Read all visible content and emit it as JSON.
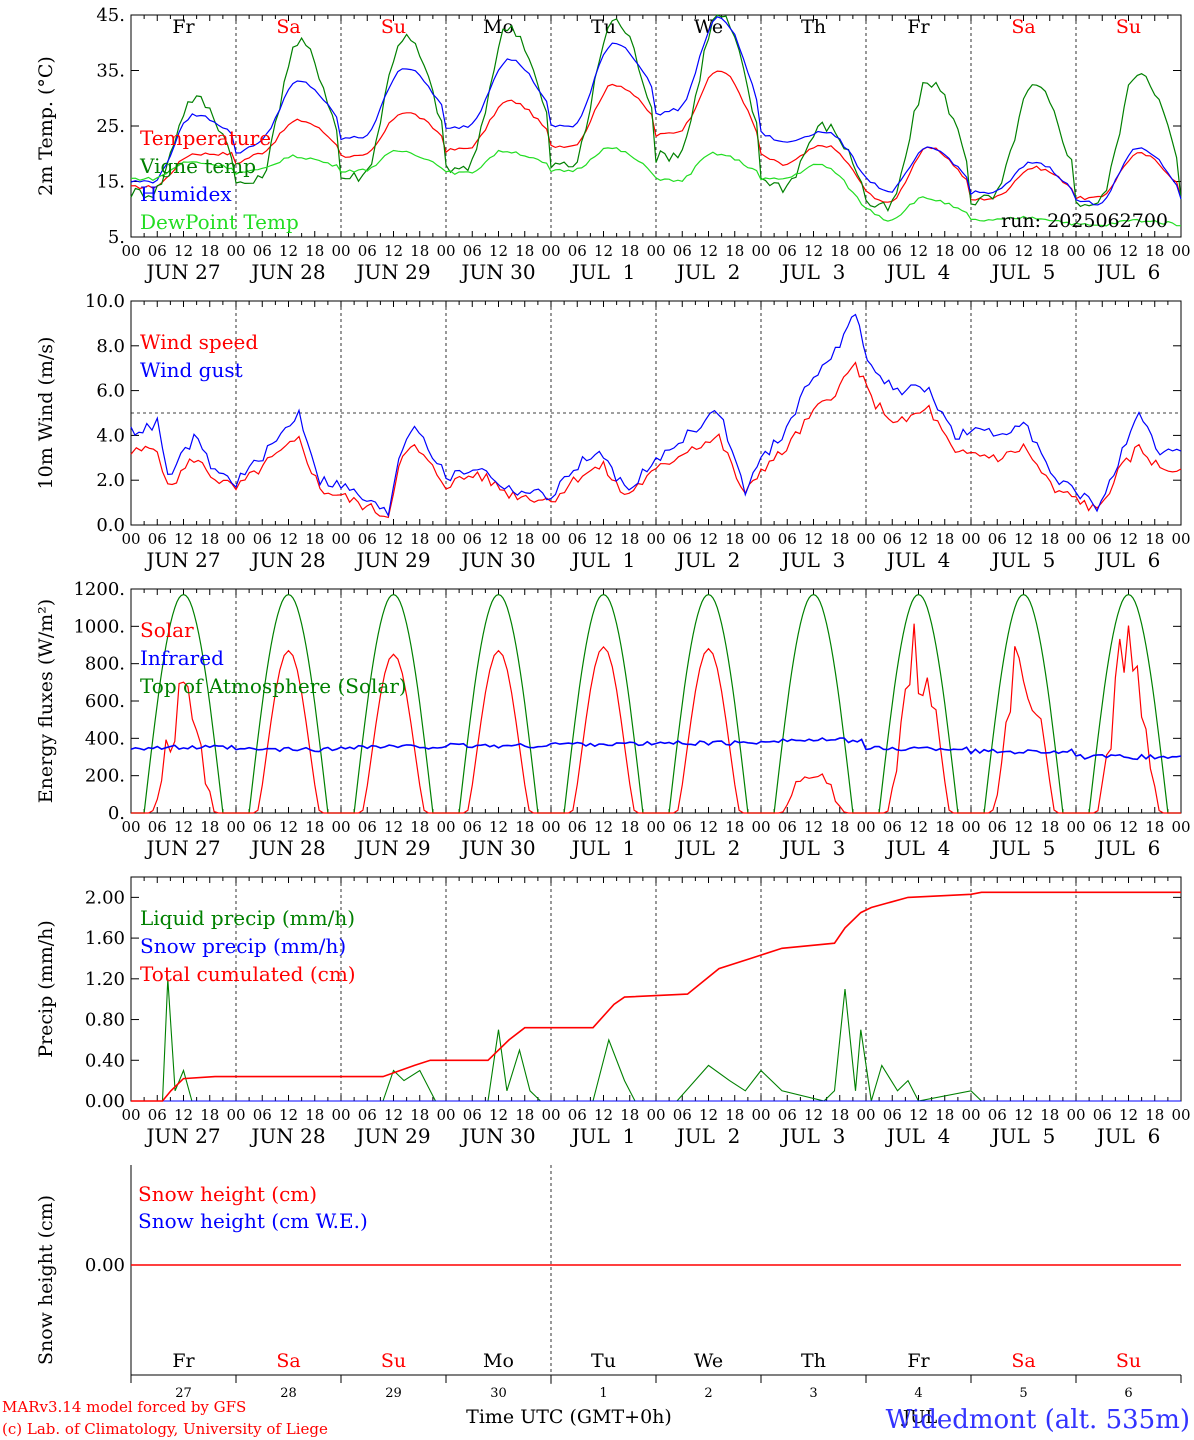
{
  "colors": {
    "red": "#ff0000",
    "green": "#008000",
    "blue": "#0000ff",
    "lime": "#22dd22",
    "black": "#000000",
    "footer_blue": "#3333ff"
  },
  "days": [
    {
      "weekday": "Fr",
      "weekend": false,
      "date": "JUN 27",
      "num": "27"
    },
    {
      "weekday": "Sa",
      "weekend": true,
      "date": "JUN 28",
      "num": "28"
    },
    {
      "weekday": "Su",
      "weekend": true,
      "date": "JUN 29",
      "num": "29"
    },
    {
      "weekday": "Mo",
      "weekend": false,
      "date": "JUN 30",
      "num": "30"
    },
    {
      "weekday": "Tu",
      "weekend": false,
      "date": "JUL  1",
      "num": "1"
    },
    {
      "weekday": "We",
      "weekend": false,
      "date": "JUL  2",
      "num": "2"
    },
    {
      "weekday": "Th",
      "weekend": false,
      "date": "JUL  3",
      "num": "3"
    },
    {
      "weekday": "Fr",
      "weekend": false,
      "date": "JUL  4",
      "num": "4"
    },
    {
      "weekday": "Sa",
      "weekend": true,
      "date": "JUL  5",
      "num": "5"
    },
    {
      "weekday": "Su",
      "weekend": true,
      "date": "JUL  6",
      "num": "6"
    }
  ],
  "hour_labels": [
    "00",
    "06",
    "12",
    "18"
  ],
  "footer": {
    "model_line1": "MARv3.14 model forced by GFS",
    "model_line2": "(c) Lab. of Climatology, University of Liege",
    "time_axis": "Time UTC (GMT+0h)",
    "location": "Widedmont (alt. 535m)",
    "month": "JUL"
  },
  "chart_data": [
    {
      "type": "line",
      "id": "temp",
      "ylabel": "2m Temp. (°C)",
      "ylim": [
        5,
        45
      ],
      "yticks": [
        "5.",
        "15.",
        "25.",
        "35.",
        "45."
      ],
      "ytick_values": [
        5,
        15,
        25,
        35,
        45
      ],
      "run": "run: 2025062700",
      "series": [
        {
          "name": "Temperature",
          "color": "#ff0000",
          "min": [
            14,
            20,
            19.5,
            21,
            21.5,
            24,
            18,
            11,
            12,
            12
          ],
          "max": [
            20,
            26,
            27.5,
            29.5,
            32.5,
            35,
            21.5,
            21,
            17.5,
            20
          ],
          "min_x": 0.2,
          "max_x": 0.6
        },
        {
          "name": "Vigne temp",
          "color": "#008000",
          "min": [
            13,
            15,
            16,
            17.5,
            18,
            20,
            14,
            10,
            12,
            11
          ],
          "max": [
            30,
            40,
            41,
            43,
            44,
            45,
            25,
            33,
            32,
            35
          ],
          "min_x": 0.2,
          "max_x": 0.6
        },
        {
          "name": "Humidex",
          "color": "#0000ff",
          "min": [
            15,
            22,
            23,
            25,
            25,
            28,
            22,
            13,
            13,
            11
          ],
          "max": [
            27,
            33,
            35.5,
            37,
            40,
            44.5,
            24,
            21,
            18.5,
            21
          ],
          "min_x": 0.2,
          "max_x": 0.6
        },
        {
          "name": "DewPoint Temp",
          "color": "#22dd22",
          "min": [
            15.5,
            17,
            17,
            16.5,
            17,
            15,
            15.5,
            8,
            8,
            7
          ],
          "max": [
            18.5,
            19.5,
            20.5,
            20.5,
            21,
            20,
            18,
            12,
            8.5,
            8
          ],
          "min_x": 0.2,
          "max_x": 0.55
        }
      ]
    },
    {
      "type": "line",
      "id": "wind",
      "ylabel": "10m Wind (m/s)",
      "ylim": [
        0,
        10
      ],
      "yticks": [
        "0.0",
        "2.0",
        "4.0",
        "6.0",
        "8.0",
        "10.0"
      ],
      "ytick_values": [
        0,
        2,
        4,
        6,
        8,
        10
      ],
      "ref_line": 5,
      "series": [
        {
          "name": "Wind speed",
          "color": "#ff0000",
          "points": [
            [
              0,
              3.2
            ],
            [
              0.1,
              3.3
            ],
            [
              0.25,
              3.5
            ],
            [
              0.35,
              1.6
            ],
            [
              0.6,
              3
            ],
            [
              0.8,
              2.1
            ],
            [
              1,
              1.6
            ],
            [
              1.3,
              2.8
            ],
            [
              1.6,
              3.8
            ],
            [
              1.8,
              1.6
            ],
            [
              2,
              1.3
            ],
            [
              2.45,
              0.4
            ],
            [
              2.55,
              2.8
            ],
            [
              2.7,
              3.5
            ],
            [
              3,
              1.8
            ],
            [
              3.3,
              2.3
            ],
            [
              3.6,
              1.4
            ],
            [
              4,
              1.1
            ],
            [
              4.3,
              2.3
            ],
            [
              4.5,
              2.6
            ],
            [
              4.7,
              1.3
            ],
            [
              5,
              2.4
            ],
            [
              5.3,
              3.4
            ],
            [
              5.6,
              3.9
            ],
            [
              5.85,
              1.3
            ],
            [
              6,
              2.5
            ],
            [
              6.2,
              3.2
            ],
            [
              6.5,
              5
            ],
            [
              6.75,
              6.2
            ],
            [
              6.9,
              7.2
            ],
            [
              7.05,
              5.6
            ],
            [
              7.3,
              4.5
            ],
            [
              7.6,
              5.2
            ],
            [
              7.85,
              3.1
            ],
            [
              8,
              3.2
            ],
            [
              8.3,
              3
            ],
            [
              8.5,
              3.5
            ],
            [
              8.8,
              1.5
            ],
            [
              9,
              1.2
            ],
            [
              9.2,
              0.6
            ],
            [
              9.4,
              2.3
            ],
            [
              9.6,
              3.5
            ],
            [
              9.8,
              2.5
            ],
            [
              10,
              2.5
            ]
          ]
        },
        {
          "name": "Wind gust",
          "color": "#0000ff",
          "points": [
            [
              0,
              4.2
            ],
            [
              0.15,
              4.3
            ],
            [
              0.25,
              4.6
            ],
            [
              0.35,
              2.1
            ],
            [
              0.6,
              3.9
            ],
            [
              0.8,
              2.4
            ],
            [
              1,
              1.9
            ],
            [
              1.3,
              3.3
            ],
            [
              1.6,
              5
            ],
            [
              1.8,
              2
            ],
            [
              2,
              1.8
            ],
            [
              2.45,
              0.5
            ],
            [
              2.55,
              3.1
            ],
            [
              2.7,
              4.6
            ],
            [
              3,
              2.1
            ],
            [
              3.3,
              2.6
            ],
            [
              3.6,
              1.6
            ],
            [
              4,
              1.3
            ],
            [
              4.3,
              2.9
            ],
            [
              4.5,
              3.1
            ],
            [
              4.7,
              1.6
            ],
            [
              5,
              2.8
            ],
            [
              5.3,
              4.1
            ],
            [
              5.6,
              5.1
            ],
            [
              5.85,
              1.5
            ],
            [
              6,
              2.9
            ],
            [
              6.2,
              4
            ],
            [
              6.5,
              6.7
            ],
            [
              6.75,
              8
            ],
            [
              6.9,
              9.5
            ],
            [
              7.05,
              6.9
            ],
            [
              7.3,
              6
            ],
            [
              7.6,
              6.1
            ],
            [
              7.85,
              3.9
            ],
            [
              8,
              4.2
            ],
            [
              8.3,
              4
            ],
            [
              8.5,
              4.8
            ],
            [
              8.8,
              1.9
            ],
            [
              9,
              1.6
            ],
            [
              9.2,
              0.7
            ],
            [
              9.4,
              2.8
            ],
            [
              9.6,
              4.8
            ],
            [
              9.8,
              3.2
            ],
            [
              10,
              3.3
            ]
          ]
        }
      ]
    },
    {
      "type": "line",
      "id": "energy",
      "ylabel": "Energy fluxes (W/m²)",
      "ylim": [
        0,
        1200
      ],
      "yticks": [
        "0.",
        "200.",
        "400.",
        "600.",
        "800.",
        "1000.",
        "1200."
      ],
      "ytick_values": [
        0,
        200,
        400,
        600,
        800,
        1000,
        1200
      ],
      "series": [
        {
          "name": "Solar",
          "color": "#ff0000",
          "peaks": [
            640,
            870,
            850,
            870,
            890,
            880,
            280,
            900,
            900,
            910
          ]
        },
        {
          "name": "Infrared",
          "color": "#0000ff",
          "base": [
            350,
            340,
            355,
            360,
            370,
            375,
            390,
            345,
            330,
            300
          ]
        },
        {
          "name": "Top of Atmosphere (Solar)",
          "color": "#008000",
          "peak": 1170
        }
      ]
    },
    {
      "type": "line",
      "id": "precip",
      "ylabel": "Precip (mm/h)",
      "ylim": [
        0,
        2.2
      ],
      "yticks": [
        "0.00",
        "0.40",
        "0.80",
        "1.20",
        "1.60",
        "2.00"
      ],
      "ytick_values": [
        0,
        0.4,
        0.8,
        1.2,
        1.6,
        2.0
      ],
      "series": [
        {
          "name": "Liquid precip (mm/h)",
          "color": "#008000",
          "points": [
            [
              0,
              0
            ],
            [
              0.3,
              0
            ],
            [
              0.35,
              1.2
            ],
            [
              0.42,
              0.1
            ],
            [
              0.5,
              0.3
            ],
            [
              0.58,
              0
            ],
            [
              2.4,
              0
            ],
            [
              2.5,
              0.3
            ],
            [
              2.6,
              0.2
            ],
            [
              2.75,
              0.3
            ],
            [
              2.9,
              0
            ],
            [
              3.4,
              0
            ],
            [
              3.5,
              0.7
            ],
            [
              3.58,
              0.1
            ],
            [
              3.7,
              0.5
            ],
            [
              3.8,
              0.1
            ],
            [
              3.9,
              0
            ],
            [
              4.4,
              0
            ],
            [
              4.55,
              0.6
            ],
            [
              4.7,
              0.2
            ],
            [
              4.8,
              0
            ],
            [
              5.2,
              0
            ],
            [
              5.5,
              0.35
            ],
            [
              5.7,
              0.2
            ],
            [
              5.85,
              0.1
            ],
            [
              6,
              0.3
            ],
            [
              6.2,
              0.1
            ],
            [
              6.6,
              0
            ],
            [
              6.7,
              0.1
            ],
            [
              6.8,
              1.1
            ],
            [
              6.9,
              0.1
            ],
            [
              6.95,
              0.7
            ],
            [
              7.05,
              0
            ],
            [
              7.15,
              0.35
            ],
            [
              7.3,
              0.1
            ],
            [
              7.4,
              0.2
            ],
            [
              7.5,
              0
            ],
            [
              8,
              0.1
            ],
            [
              8.1,
              0
            ],
            [
              10,
              0
            ]
          ]
        },
        {
          "name": "Snow precip (mm/h)",
          "color": "#0000ff",
          "points": [
            [
              0,
              0
            ],
            [
              10,
              0
            ]
          ]
        },
        {
          "name": "Total cumulated (cm)",
          "color": "#ff0000",
          "points": [
            [
              0,
              0
            ],
            [
              0.3,
              0
            ],
            [
              0.38,
              0.1
            ],
            [
              0.5,
              0.22
            ],
            [
              0.8,
              0.24
            ],
            [
              2.4,
              0.24
            ],
            [
              2.7,
              0.35
            ],
            [
              2.85,
              0.4
            ],
            [
              3.4,
              0.4
            ],
            [
              3.6,
              0.6
            ],
            [
              3.75,
              0.72
            ],
            [
              4.4,
              0.72
            ],
            [
              4.6,
              0.95
            ],
            [
              4.7,
              1.02
            ],
            [
              5.3,
              1.05
            ],
            [
              5.6,
              1.3
            ],
            [
              5.9,
              1.4
            ],
            [
              6.2,
              1.5
            ],
            [
              6.7,
              1.55
            ],
            [
              6.8,
              1.7
            ],
            [
              6.95,
              1.85
            ],
            [
              7.05,
              1.9
            ],
            [
              7.4,
              2.0
            ],
            [
              8,
              2.03
            ],
            [
              8.1,
              2.05
            ],
            [
              10,
              2.05
            ]
          ]
        }
      ]
    },
    {
      "type": "line",
      "id": "snow",
      "ylabel": "Snow height (cm)",
      "ylim": [
        -1,
        1
      ],
      "yticks": [
        "0.00"
      ],
      "ytick_values": [
        0
      ],
      "series": [
        {
          "name": "Snow height (cm)",
          "color": "#ff0000",
          "points": [
            [
              0,
              0
            ],
            [
              10,
              0
            ]
          ]
        },
        {
          "name": "Snow height (cm W.E.)",
          "color": "#0000ff",
          "points": [
            [
              0,
              0
            ],
            [
              10,
              0
            ]
          ]
        }
      ]
    }
  ]
}
